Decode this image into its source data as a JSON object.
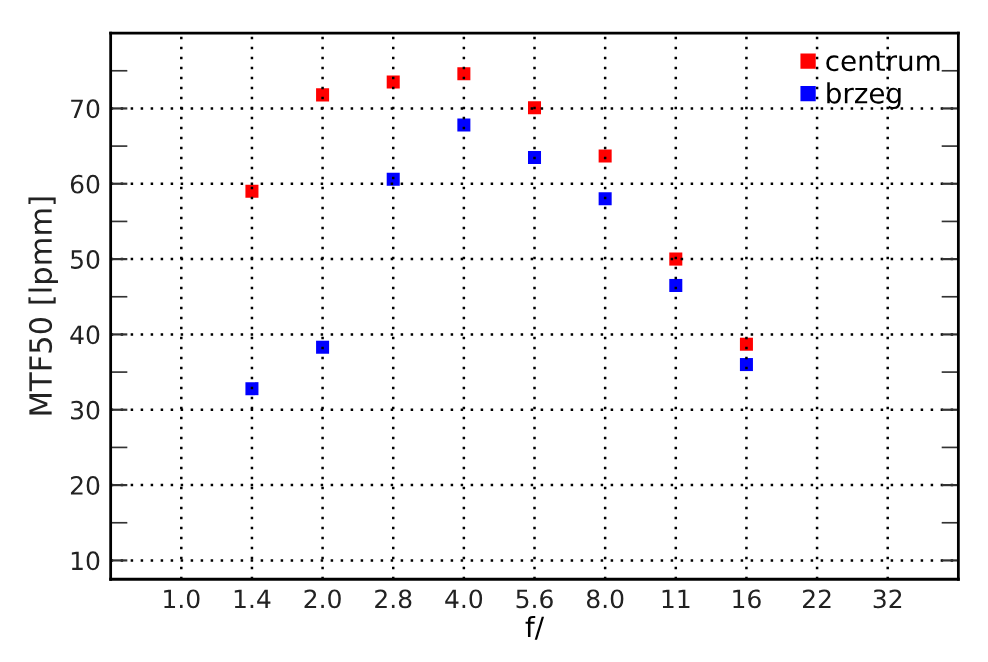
{
  "chart_data": {
    "type": "scatter",
    "xlabel": "f/",
    "ylabel": "MTF50 [lpmm]",
    "categories": [
      "1.0",
      "1.4",
      "2.0",
      "2.8",
      "4.0",
      "5.6",
      "8.0",
      "11",
      "16",
      "22",
      "32"
    ],
    "series": [
      {
        "name": "centrum",
        "color": "#ff0000",
        "values": [
          null,
          59,
          71.8,
          73.5,
          74.6,
          70.1,
          63.7,
          50,
          38.7,
          null,
          null
        ]
      },
      {
        "name": "brzeg",
        "color": "#0000ff",
        "values": [
          null,
          32.8,
          38.3,
          60.6,
          67.8,
          63.5,
          58,
          46.5,
          36,
          null,
          null
        ]
      }
    ],
    "ylim": [
      7.5,
      80
    ],
    "yticks": [
      10,
      {
        "value": 15,
        "label": null
      },
      20,
      {
        "value": 25,
        "label": null
      },
      30,
      {
        "value": 35,
        "label": null
      },
      40,
      {
        "value": 45,
        "label": null
      },
      50,
      {
        "value": 55,
        "label": null
      },
      60,
      {
        "value": 65,
        "label": null
      },
      70,
      {
        "value": 75,
        "label": null
      }
    ],
    "grid": true,
    "legend": "top right",
    "marker": "square"
  }
}
